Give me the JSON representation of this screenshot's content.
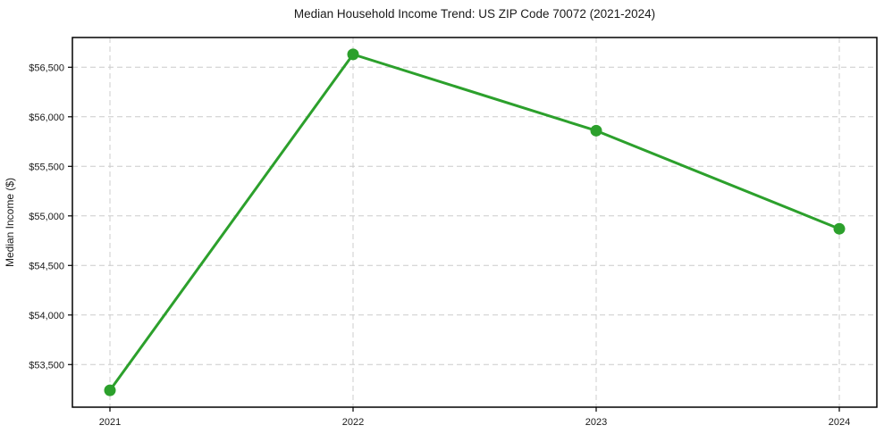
{
  "chart_data": {
    "type": "line",
    "title": "Median Household Income Trend: US ZIP Code 70072 (2021-2024)",
    "ylabel": "Median Income ($)",
    "xlabel": "",
    "categories": [
      "2021",
      "2022",
      "2023",
      "2024"
    ],
    "values": [
      53240,
      56630,
      55860,
      54870
    ],
    "yticks": {
      "values": [
        53500,
        54000,
        54500,
        55000,
        55500,
        56000,
        56500
      ],
      "labels": [
        "$53,500",
        "$54,000",
        "$54,500",
        "$55,000",
        "$55,500",
        "$56,000",
        "$56,500"
      ]
    },
    "ylim": [
      53070,
      56800
    ],
    "grid": true,
    "grid_style": "dashed",
    "legend": false,
    "marker": "circle",
    "colors": {
      "line": "#2ca02c",
      "marker": "#2ca02c",
      "grid": "#cccccc",
      "axis": "#000000",
      "text": "#1a1a1a",
      "background": "#ffffff"
    }
  }
}
